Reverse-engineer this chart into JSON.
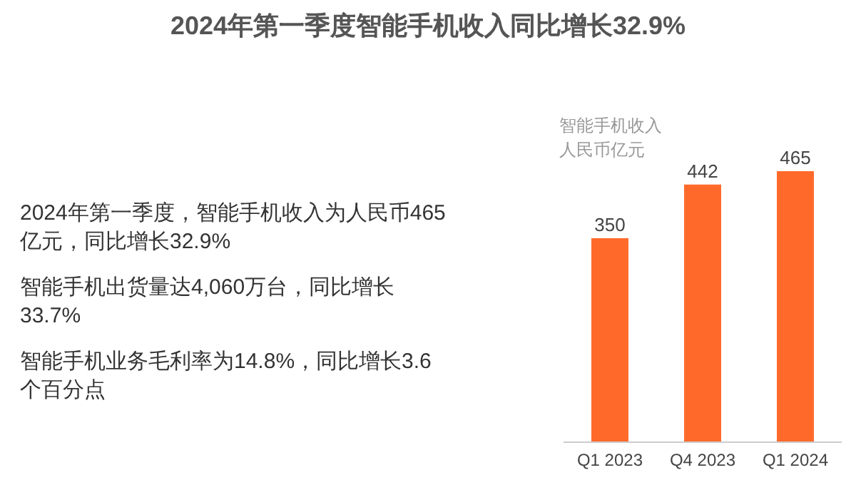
{
  "chart_data": {
    "type": "bar",
    "title": "2024年第一季度智能手机收入同比增长32.9%",
    "ylabel": "智能手机收入人民币亿元",
    "categories": [
      "Q1 2023",
      "Q4 2023",
      "Q1 2024"
    ],
    "values": [
      350,
      442,
      465
    ],
    "color": "#ff6a2b",
    "data_labels": true,
    "grid": false,
    "legend": false,
    "annotations": [
      "2024年第一季度，智能手机收入为人民币465亿元，同比增长32.9%",
      "智能手机出货量达4,060万台，同比增长33.7%",
      "智能手机业务毛利率为14.8%，同比增长3.6个百分点"
    ]
  }
}
